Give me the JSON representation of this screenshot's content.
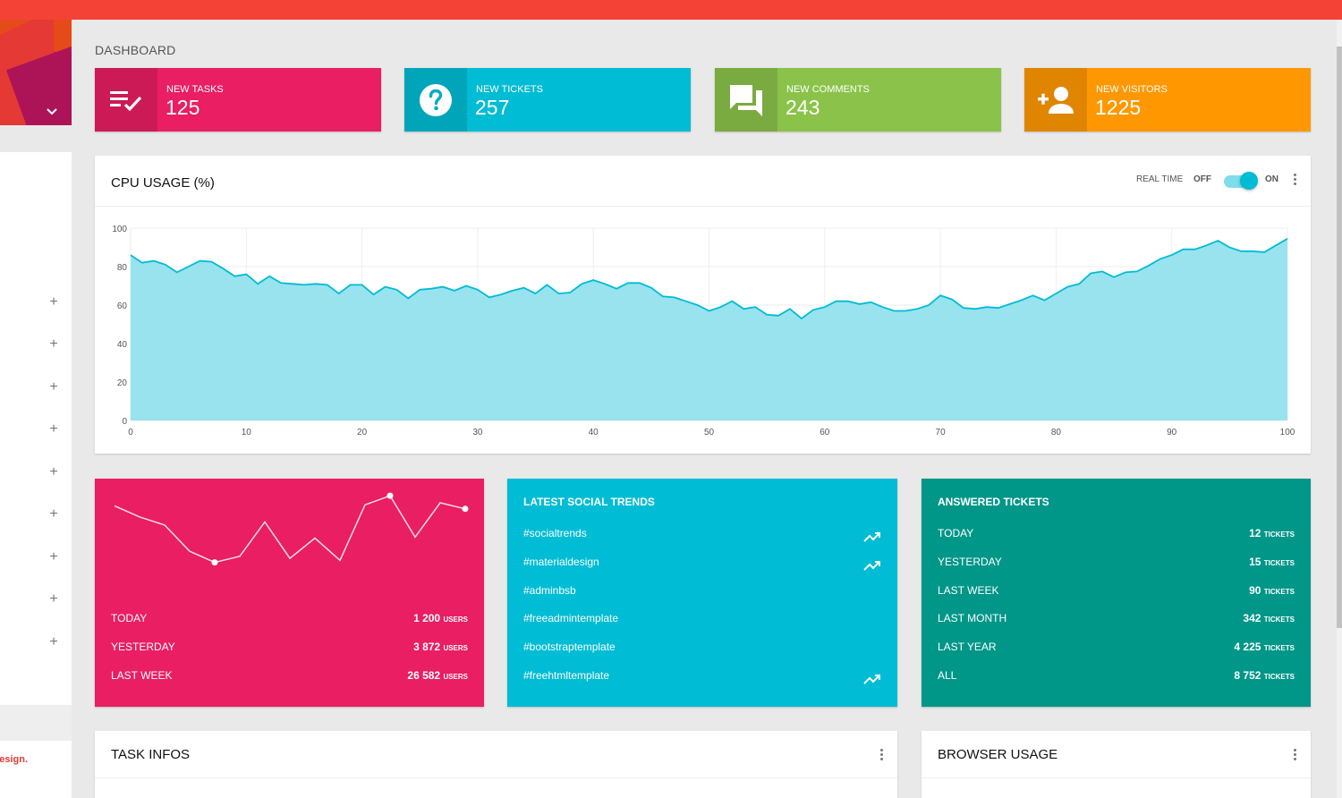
{
  "page": {
    "title": "DASHBOARD"
  },
  "sidebar": {
    "footer_text": "ial Design.",
    "expand_count": 9
  },
  "info_boxes": [
    {
      "label": "NEW TASKS",
      "value": "125",
      "color": "#e91e63",
      "icon": "playlist-add-check-icon"
    },
    {
      "label": "NEW TICKETS",
      "value": "257",
      "color": "#00bcd4",
      "icon": "help-icon"
    },
    {
      "label": "NEW COMMENTS",
      "value": "243",
      "color": "#8bc34a",
      "icon": "forum-icon"
    },
    {
      "label": "NEW VISITORS",
      "value": "1225",
      "color": "#ff9800",
      "icon": "person-add-icon"
    }
  ],
  "cpu_card": {
    "title": "CPU USAGE (%)",
    "realtime_label": "REAL TIME",
    "off_label": "OFF",
    "on_label": "ON",
    "realtime_on": true
  },
  "chart_data": {
    "type": "area",
    "title": "",
    "xlabel": "",
    "ylabel": "",
    "xlim": [
      0,
      100
    ],
    "ylim": [
      0,
      100
    ],
    "x_ticks": [
      0,
      10,
      20,
      30,
      40,
      50,
      60,
      70,
      80,
      90,
      100
    ],
    "y_ticks": [
      0,
      20,
      40,
      60,
      80,
      100
    ],
    "color": "#00bcd4",
    "fill": "#98e3ee",
    "x": [
      0,
      1,
      2,
      3,
      4,
      5,
      6,
      7,
      8,
      9,
      10,
      11,
      12,
      13,
      14,
      15,
      16,
      17,
      18,
      19,
      20,
      21,
      22,
      23,
      24,
      25,
      26,
      27,
      28,
      29,
      30,
      31,
      32,
      33,
      34,
      35,
      36,
      37,
      38,
      39,
      40,
      41,
      42,
      43,
      44,
      45,
      46,
      47,
      48,
      49,
      50,
      51,
      52,
      53,
      54,
      55,
      56,
      57,
      58,
      59,
      60,
      61,
      62,
      63,
      64,
      65,
      66,
      67,
      68,
      69,
      70,
      71,
      72,
      73,
      74,
      75,
      76,
      77,
      78,
      79,
      80,
      81,
      82,
      83,
      84,
      85,
      86,
      87,
      88,
      89,
      90,
      91,
      92,
      93,
      94,
      95,
      96,
      97,
      98,
      99,
      100
    ],
    "values": [
      86,
      82,
      83,
      81,
      77,
      80,
      83,
      82.5,
      79,
      75,
      76,
      71,
      75,
      71.5,
      71,
      70.5,
      71,
      70.5,
      66,
      70.5,
      70.5,
      65.5,
      69.5,
      68,
      63.5,
      68,
      68.5,
      69.5,
      67.5,
      70,
      68,
      64,
      65.5,
      67.5,
      69,
      66,
      70.5,
      66,
      66.5,
      71,
      73,
      71,
      68.5,
      71.5,
      71.5,
      69,
      64.5,
      64,
      62,
      60,
      57,
      59,
      62,
      58,
      59,
      55,
      54.5,
      58,
      53,
      57.5,
      59,
      62,
      62,
      60.5,
      61.5,
      59,
      57,
      57,
      58,
      60,
      65,
      63,
      58.5,
      58,
      59,
      58.5,
      60.5,
      62.5,
      65,
      62.5,
      66,
      69.5,
      71,
      76.5,
      77.5,
      74.5,
      77,
      77.5,
      80.5,
      84,
      86,
      89,
      89,
      91,
      93.5,
      90,
      88,
      88,
      87.5,
      91,
      94.5
    ]
  },
  "users_card": {
    "color": "#e91e63",
    "sparkline": [
      11,
      22,
      30,
      56,
      67,
      61,
      27,
      63,
      43,
      65,
      10,
      1,
      42,
      8,
      14
    ],
    "rows": [
      {
        "label": "TODAY",
        "value": "1 200",
        "unit": "USERS"
      },
      {
        "label": "YESTERDAY",
        "value": "3 872",
        "unit": "USERS"
      },
      {
        "label": "LAST WEEK",
        "value": "26 582",
        "unit": "USERS"
      }
    ]
  },
  "social_card": {
    "title": "LATEST SOCIAL TRENDS",
    "color": "#00bcd4",
    "items": [
      {
        "tag": "#socialtrends",
        "trending": true
      },
      {
        "tag": "#materialdesign",
        "trending": true
      },
      {
        "tag": "#adminbsb",
        "trending": false
      },
      {
        "tag": "#freeadmintemplate",
        "trending": false
      },
      {
        "tag": "#bootstraptemplate",
        "trending": false
      },
      {
        "tag": "#freehtmltemplate",
        "trending": true
      }
    ]
  },
  "tickets_card": {
    "title": "ANSWERED TICKETS",
    "color": "#009688",
    "rows": [
      {
        "label": "TODAY",
        "value": "12",
        "unit": "TICKETS"
      },
      {
        "label": "YESTERDAY",
        "value": "15",
        "unit": "TICKETS"
      },
      {
        "label": "LAST WEEK",
        "value": "90",
        "unit": "TICKETS"
      },
      {
        "label": "LAST MONTH",
        "value": "342",
        "unit": "TICKETS"
      },
      {
        "label": "LAST YEAR",
        "value": "4 225",
        "unit": "TICKETS"
      },
      {
        "label": "ALL",
        "value": "8 752",
        "unit": "TICKETS"
      }
    ]
  },
  "task_card": {
    "title": "TASK INFOS"
  },
  "browser_card": {
    "title": "BROWSER USAGE"
  }
}
